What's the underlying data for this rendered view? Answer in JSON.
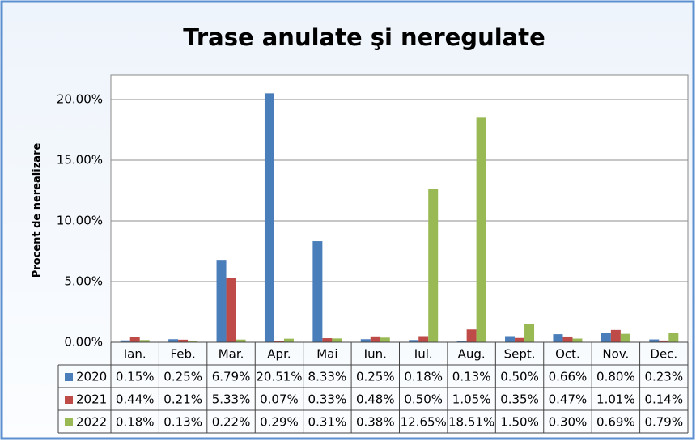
{
  "chart_data": {
    "type": "bar",
    "title": "Trase anulate şi neregulate",
    "y_label": "Procent de nerealizare",
    "categories": [
      "Ian.",
      "Feb.",
      "Mar.",
      "Apr.",
      "Mai",
      "Iun.",
      "Iul.",
      "Aug.",
      "Sept.",
      "Oct.",
      "Nov.",
      "Dec."
    ],
    "series": [
      {
        "name": "2020",
        "color": "#4a7ebb",
        "values": [
          0.15,
          0.25,
          6.79,
          20.51,
          8.33,
          0.25,
          0.18,
          0.13,
          0.5,
          0.66,
          0.8,
          0.23
        ],
        "value_labels": [
          "0.15%",
          "0.25%",
          "6.79%",
          "20.51%",
          "8.33%",
          "0.25%",
          "0.18%",
          "0.13%",
          "0.50%",
          "0.66%",
          "0.80%",
          "0.23%"
        ]
      },
      {
        "name": "2021",
        "color": "#be4b48",
        "values": [
          0.44,
          0.21,
          5.33,
          0.07,
          0.33,
          0.48,
          0.5,
          1.05,
          0.35,
          0.47,
          1.01,
          0.14
        ],
        "value_labels": [
          "0.44%",
          "0.21%",
          "5.33%",
          "0.07%",
          "0.33%",
          "0.48%",
          "0.50%",
          "1.05%",
          "0.35%",
          "0.47%",
          "1.01%",
          "0.14%"
        ]
      },
      {
        "name": "2022",
        "color": "#98b954",
        "values": [
          0.18,
          0.13,
          0.22,
          0.29,
          0.31,
          0.38,
          12.65,
          18.51,
          1.5,
          0.3,
          0.69,
          0.79
        ],
        "value_labels": [
          "0.18%",
          "0.13%",
          "0.22%",
          "0.29%",
          "0.31%",
          "0.38%",
          "12.65%",
          "18.51%",
          "1.50%",
          "0.30%",
          "0.69%",
          "0.79%"
        ]
      }
    ],
    "ylim": [
      0,
      22
    ],
    "yticks": [
      {
        "value": 0,
        "label": "0.00%"
      },
      {
        "value": 5,
        "label": "5.00%"
      },
      {
        "value": 10,
        "label": "10.00%"
      },
      {
        "value": 15,
        "label": "15.00%"
      },
      {
        "value": 20,
        "label": "20.00%"
      }
    ],
    "grid": true
  }
}
